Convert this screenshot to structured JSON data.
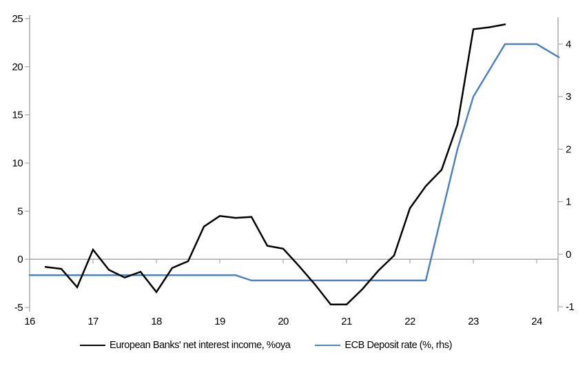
{
  "chart_data": {
    "type": "line",
    "title": "",
    "xlabel": "",
    "ylabel_left": "",
    "ylabel_right": "",
    "grid": "zero-line-only",
    "legend_position": "bottom",
    "axis_color": "#a6a6a6",
    "text_color": "#000000",
    "x_axis": {
      "min": 16,
      "max": 24.35,
      "ticks": [
        16,
        17,
        18,
        19,
        20,
        21,
        22,
        23,
        24
      ]
    },
    "y_axis_left": {
      "min": -5,
      "max": 25,
      "ticks": [
        -5,
        0,
        5,
        10,
        15,
        20,
        25
      ]
    },
    "y_axis_right": {
      "min": -1,
      "max": 4.5,
      "ticks": [
        -1,
        0,
        1,
        2,
        3,
        4
      ]
    },
    "series": [
      {
        "name": "European Banks' net interest income, %oya",
        "color": "#000000",
        "axis": "left",
        "x": [
          16.25,
          16.5,
          16.75,
          17.0,
          17.25,
          17.5,
          17.75,
          18.0,
          18.25,
          18.5,
          18.75,
          19.0,
          19.25,
          19.5,
          19.75,
          20.0,
          20.25,
          20.5,
          20.75,
          21.0,
          21.25,
          21.5,
          21.75,
          22.0,
          22.25,
          22.5,
          22.75,
          23.0,
          23.25,
          23.5
        ],
        "values": [
          -0.8,
          -1.0,
          -2.9,
          1.0,
          -1.1,
          -1.9,
          -1.3,
          -3.4,
          -0.9,
          -0.2,
          3.4,
          4.5,
          4.3,
          4.4,
          1.4,
          1.1,
          -0.7,
          -2.6,
          -4.7,
          -4.7,
          -3.1,
          -1.2,
          0.4,
          5.3,
          7.6,
          9.3,
          14.0,
          23.9,
          24.1,
          24.4
        ]
      },
      {
        "name": "ECB Deposit rate (%, rhs)",
        "color": "#4f81bd",
        "axis": "right",
        "x": [
          16.0,
          19.25,
          19.5,
          22.25,
          22.5,
          22.75,
          23.0,
          23.25,
          23.5,
          24.0,
          24.35
        ],
        "values": [
          -0.4,
          -0.4,
          -0.5,
          -0.5,
          0.75,
          2.0,
          3.0,
          3.5,
          4.0,
          4.0,
          3.75
        ]
      }
    ]
  }
}
